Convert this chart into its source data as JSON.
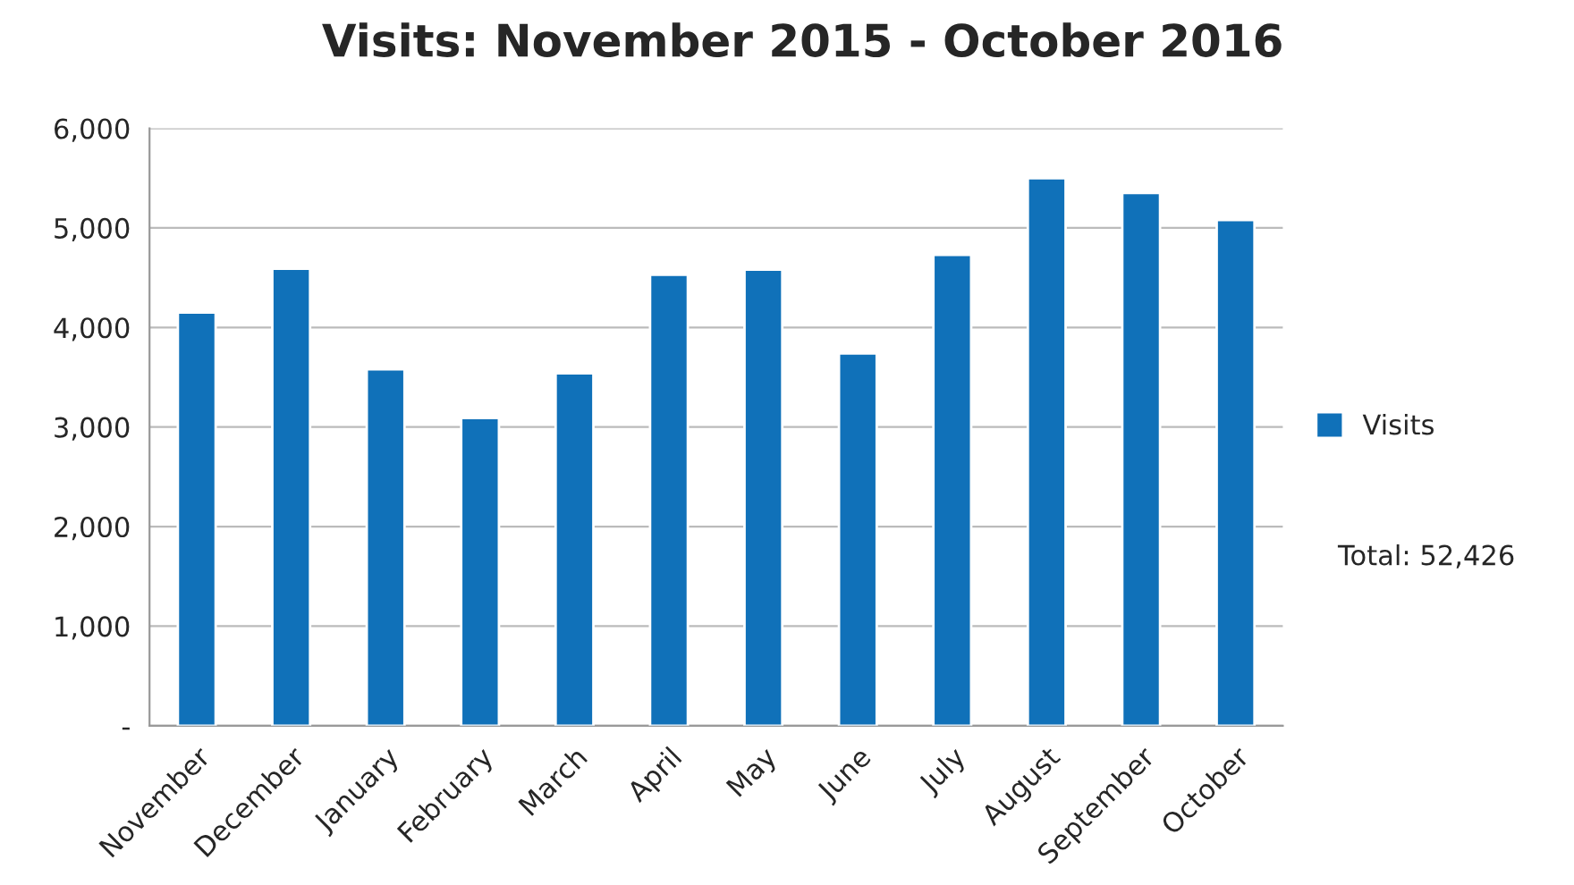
{
  "chart_data": {
    "type": "bar",
    "title": "Visits: November 2015 - October 2016",
    "categories": [
      "November",
      "December",
      "January",
      "February",
      "March",
      "April",
      "May",
      "June",
      "July",
      "August",
      "September",
      "October"
    ],
    "series": [
      {
        "name": "Visits",
        "color": "#1071b9",
        "values": [
          4150,
          4590,
          3580,
          3090,
          3540,
          4530,
          4580,
          3740,
          4730,
          5500,
          5350,
          5080
        ]
      }
    ],
    "ylim": [
      0,
      6000
    ],
    "yticks": [
      {
        "value": 0,
        "label": "-"
      },
      {
        "value": 1000,
        "label": "1,000"
      },
      {
        "value": 2000,
        "label": "2,000"
      },
      {
        "value": 3000,
        "label": "3,000"
      },
      {
        "value": 4000,
        "label": "4,000"
      },
      {
        "value": 5000,
        "label": "5,000"
      },
      {
        "value": 6000,
        "label": "6,000"
      }
    ],
    "grid": "y",
    "legend": "right",
    "annotations": [
      "Total: 52,426"
    ]
  }
}
